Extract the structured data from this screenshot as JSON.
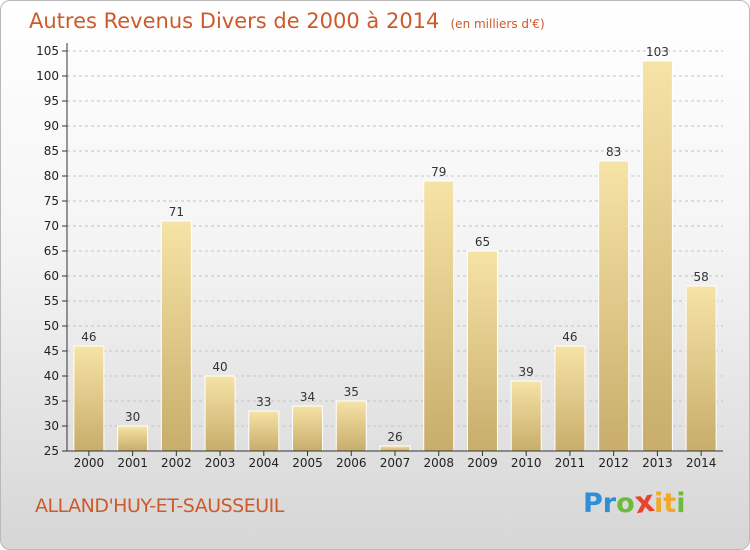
{
  "header": {
    "title": "Autres Revenus Divers de 2000 à 2014",
    "unit": "(en milliers d'€)"
  },
  "footer": {
    "commune": "ALLAND'HUY-ET-SAUSSEUIL",
    "brand_letters": [
      "P",
      "r",
      "o",
      "x",
      "i",
      "t",
      "i"
    ],
    "brand_colors": [
      "#2d8fd5",
      "#2d8fd5",
      "#6fba3a",
      "#e9422e",
      "#f0a928",
      "#f0a928",
      "#6fba3a"
    ]
  },
  "colors": {
    "bar_light": "#f6e3a6",
    "bar_dark": "#c8ad6b",
    "bar_border": "#ffffff",
    "axis": "#333333",
    "grid": "#c4c4c4",
    "title": "#cc5a2a"
  },
  "chart_data": {
    "type": "bar",
    "categories": [
      "2000",
      "2001",
      "2002",
      "2003",
      "2004",
      "2005",
      "2006",
      "2007",
      "2008",
      "2009",
      "2010",
      "2011",
      "2012",
      "2013",
      "2014"
    ],
    "values": [
      46,
      30,
      71,
      40,
      33,
      34,
      35,
      26,
      79,
      65,
      39,
      46,
      83,
      103,
      58
    ],
    "ylim": [
      25,
      105
    ],
    "yticks": [
      25,
      30,
      35,
      40,
      45,
      50,
      55,
      60,
      65,
      70,
      75,
      80,
      85,
      90,
      95,
      100,
      105
    ],
    "grid": true,
    "data_labels": true
  }
}
